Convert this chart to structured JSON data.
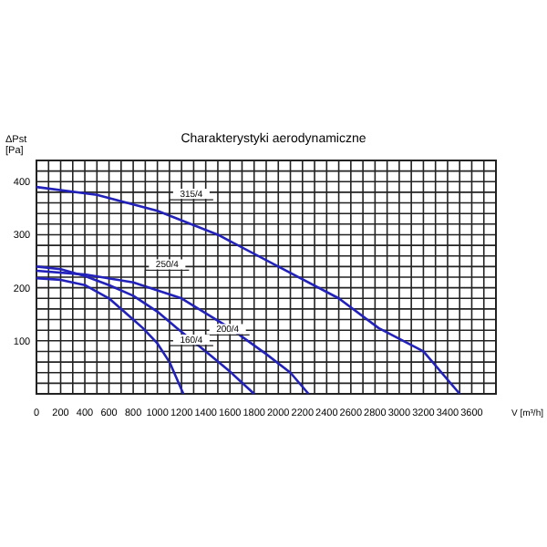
{
  "chart_data": {
    "type": "line",
    "title": "Charakterystyki aerodynamiczne",
    "xlabel": "V [m³/h]",
    "ylabel": "ΔPst [Pa]",
    "xlim": [
      0,
      3800
    ],
    "ylim": [
      0,
      440
    ],
    "xticks": [
      0,
      {
        "value": 100,
        "label": null
      },
      200,
      {
        "value": 300,
        "label": null
      },
      400,
      {
        "value": 500,
        "label": null
      },
      600,
      {
        "value": 700,
        "label": null
      },
      800,
      {
        "value": 900,
        "label": null
      },
      1000,
      {
        "value": 1100,
        "label": null
      },
      1200,
      {
        "value": 1300,
        "label": null
      },
      1400,
      {
        "value": 1500,
        "label": null
      },
      1600,
      {
        "value": 1700,
        "label": null
      },
      1800,
      {
        "value": 1900,
        "label": null
      },
      2000,
      {
        "value": 2100,
        "label": null
      },
      2200,
      {
        "value": 2300,
        "label": null
      },
      2400,
      {
        "value": 2500,
        "label": null
      },
      2600,
      {
        "value": 2700,
        "label": null
      },
      2800,
      {
        "value": 2900,
        "label": null
      },
      3000,
      {
        "value": 3100,
        "label": null
      },
      3200,
      {
        "value": 3300,
        "label": null
      },
      3400,
      {
        "value": 3500,
        "label": null
      },
      3600,
      {
        "value": 3700,
        "label": null
      },
      {
        "value": 3800,
        "label": null
      }
    ],
    "yticks": [
      {
        "value": 20,
        "label": null
      },
      {
        "value": 40,
        "label": null
      },
      {
        "value": 60,
        "label": null
      },
      {
        "value": 80,
        "label": null
      },
      100,
      {
        "value": 120,
        "label": null
      },
      {
        "value": 140,
        "label": null
      },
      {
        "value": 160,
        "label": null
      },
      {
        "value": 180,
        "label": null
      },
      200,
      {
        "value": 220,
        "label": null
      },
      {
        "value": 240,
        "label": null
      },
      {
        "value": 260,
        "label": null
      },
      {
        "value": 280,
        "label": null
      },
      300,
      {
        "value": 320,
        "label": null
      },
      {
        "value": 340,
        "label": null
      },
      {
        "value": 360,
        "label": null
      },
      {
        "value": 380,
        "label": null
      },
      400,
      {
        "value": 420,
        "label": null
      },
      {
        "value": 440,
        "label": null
      }
    ],
    "grid": true,
    "line_style": "solid",
    "series": [
      {
        "color": "#2222bb",
        "x": [
          0,
          500,
          1000,
          1500,
          2000,
          2500,
          2830,
          3200,
          3500
        ],
        "values": [
          390,
          375,
          345,
          300,
          240,
          180,
          124,
          80,
          0
        ]
      },
      {
        "color": "#2222bb",
        "x": [
          0,
          400,
          800,
          1200,
          1600,
          1900,
          2100,
          2250
        ],
        "values": [
          232,
          225,
          210,
          180,
          124,
          75,
          40,
          0
        ]
      },
      {
        "color": "#2222bb",
        "x": [
          0,
          200,
          400,
          600,
          800,
          1000,
          1160,
          1400,
          1600,
          1800
        ],
        "values": [
          240,
          235,
          222,
          205,
          185,
          155,
          124,
          80,
          42,
          0
        ]
      },
      {
        "color": "#2222bb",
        "x": [
          0,
          200,
          400,
          600,
          800,
          880,
          1000,
          1100,
          1215
        ],
        "values": [
          218,
          215,
          205,
          180,
          140,
          124,
          95,
          60,
          0
        ]
      }
    ],
    "annotations": [
      {
        "text": "315/4",
        "x": 1100,
        "y": 335
      },
      {
        "text": "250/4",
        "x": 900,
        "y": 202
      },
      {
        "text": "200/4",
        "x": 1400,
        "y": 80
      },
      {
        "text": "160/4",
        "x": 1100,
        "y": 60
      }
    ]
  }
}
